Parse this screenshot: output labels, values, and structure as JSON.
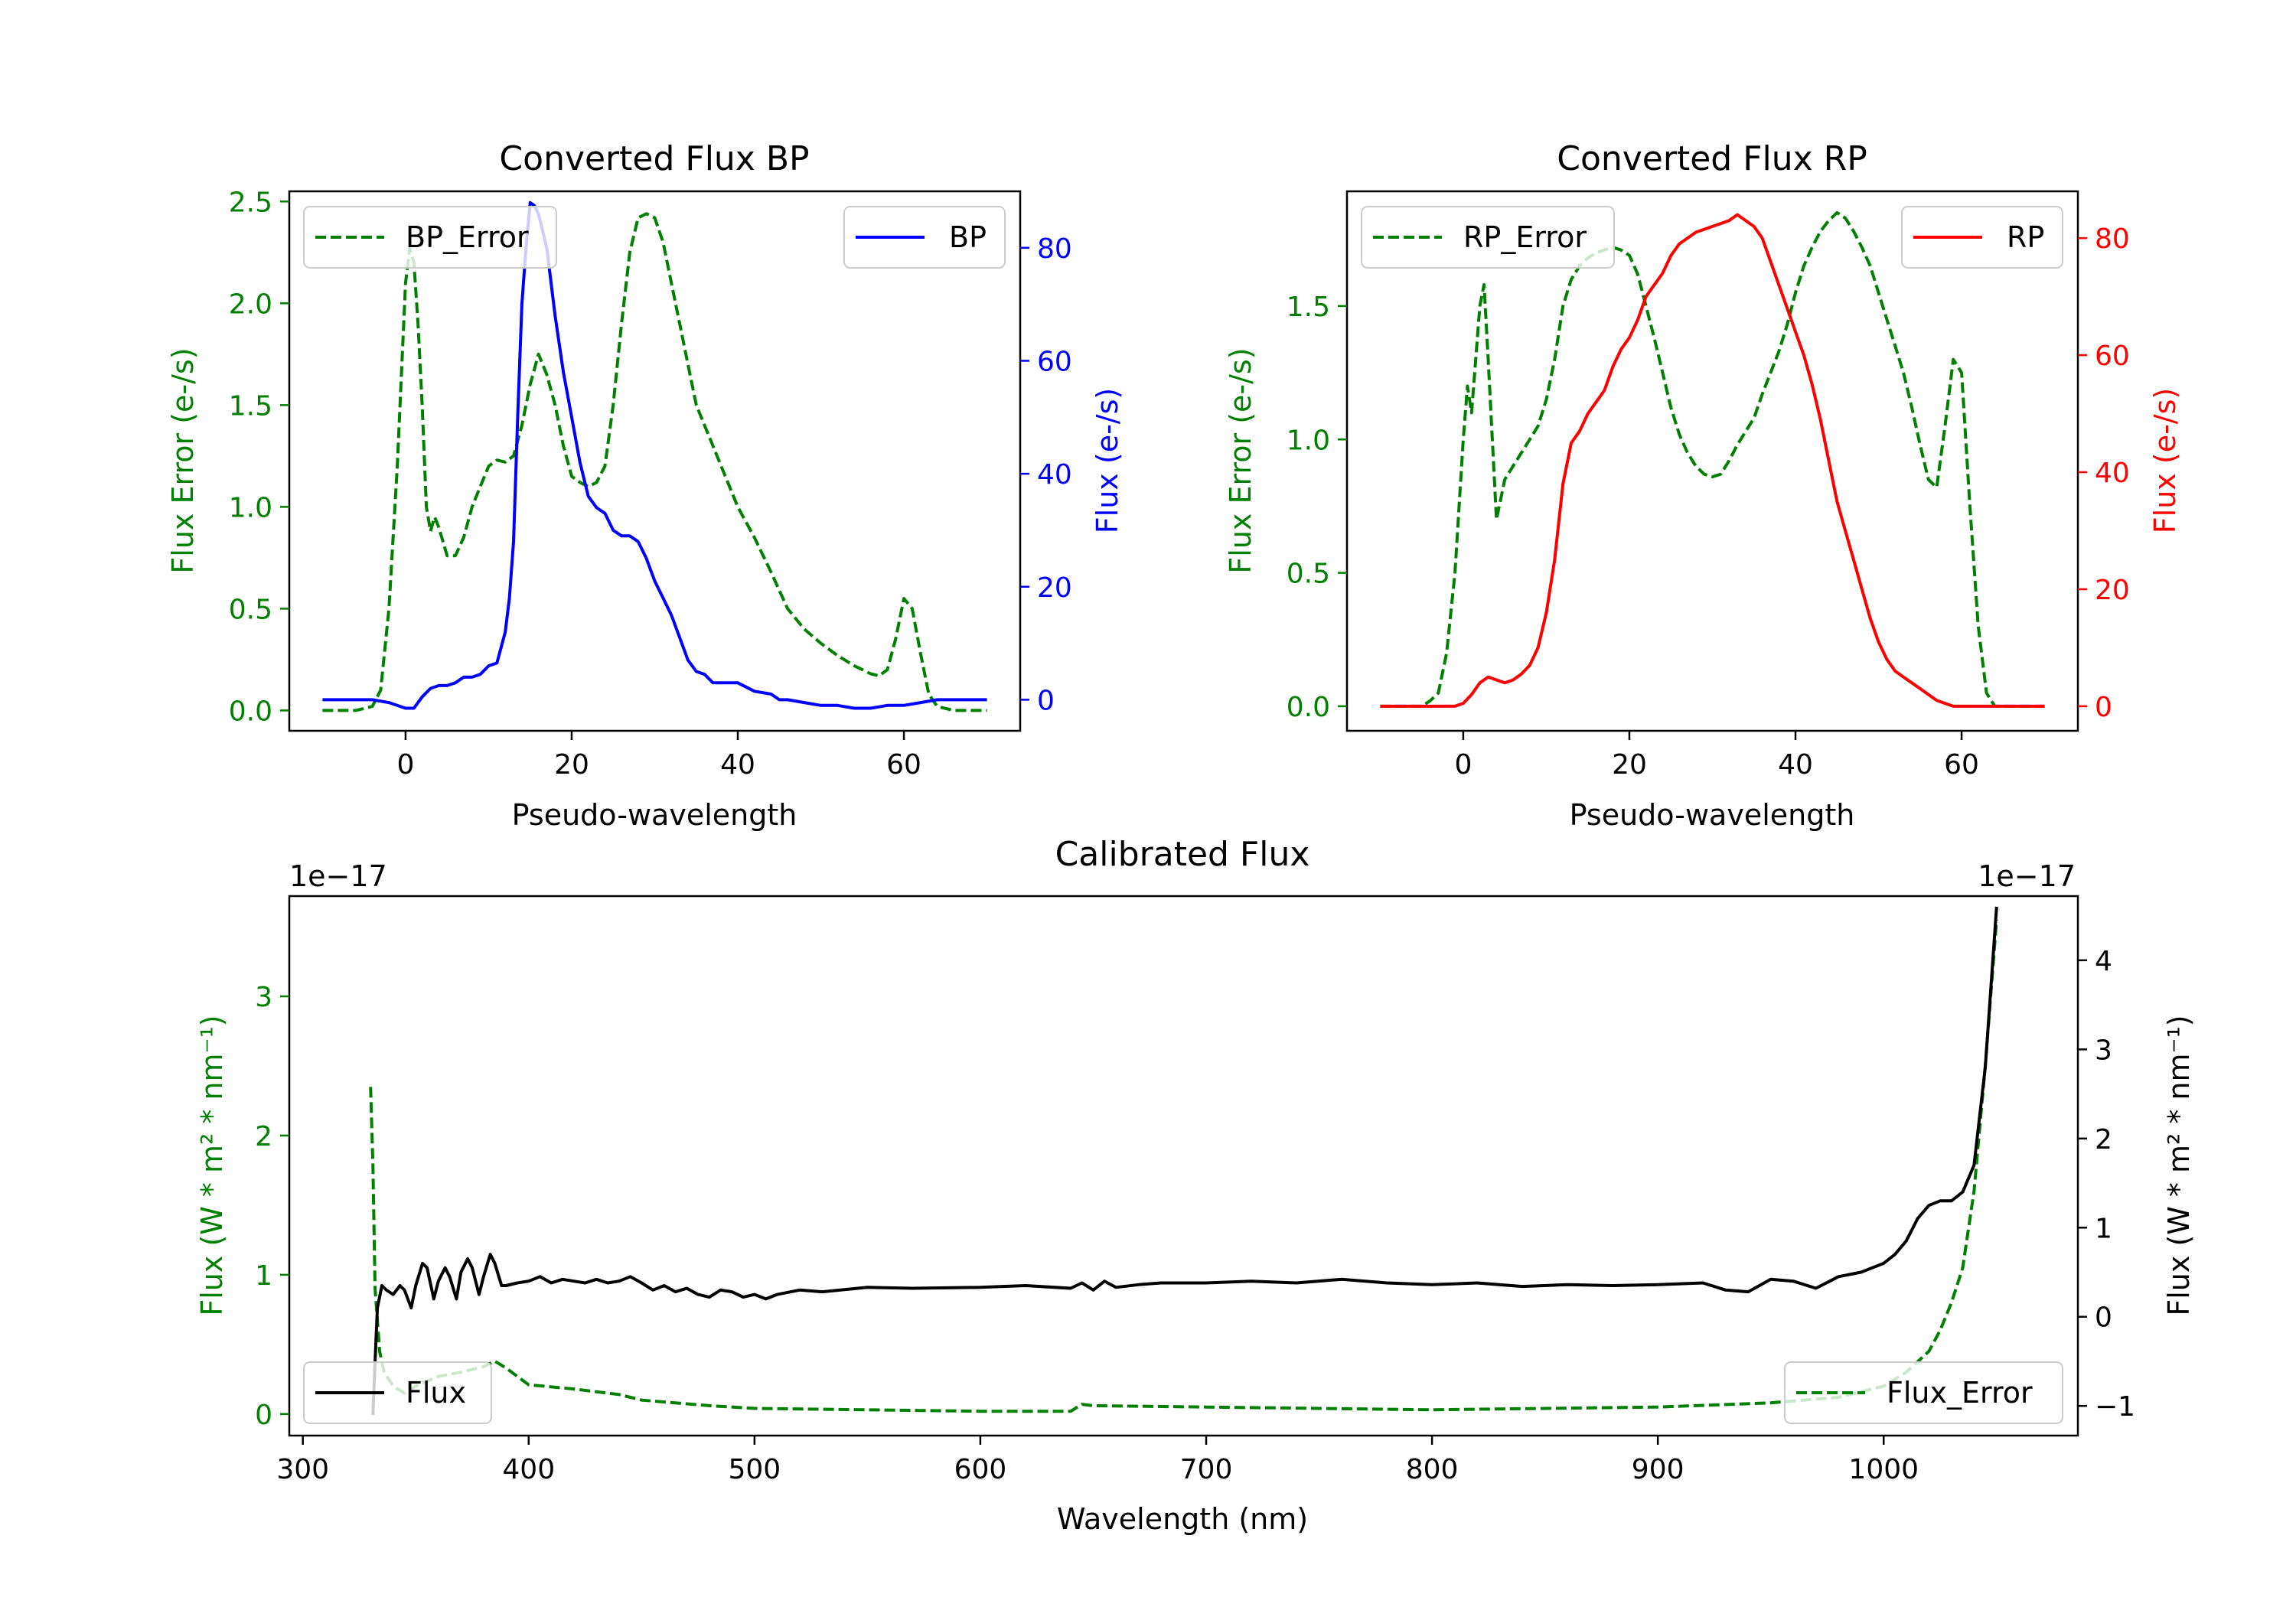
{
  "chart_data": [
    {
      "id": "bp",
      "type": "line",
      "title": "Converted Flux BP",
      "xlabel": "Pseudo-wavelength",
      "ylabel_left": "Flux Error (e-/s)",
      "ylabel_right": "Flux (e-/s)",
      "xlim": [
        -14,
        74
      ],
      "ylim_left": [
        -0.1,
        2.55
      ],
      "ylim_right": [
        -5.5,
        90
      ],
      "xticks": [
        0,
        20,
        40,
        60
      ],
      "yticks_left": [
        0.0,
        0.5,
        1.0,
        1.5,
        2.0,
        2.5
      ],
      "yticks_right": [
        0,
        20,
        40,
        60,
        80
      ],
      "legend_left": "BP_Error",
      "legend_right": "BP",
      "colors": {
        "error": "#008000",
        "flux": "#0000ff",
        "left_axis": "#008000",
        "right_axis": "#0000ff"
      },
      "series": [
        {
          "name": "BP_Error",
          "axis": "left",
          "style": "dashed",
          "x": [
            -10,
            -6,
            -4,
            -3,
            -2,
            -1,
            0,
            0.5,
            1,
            1.5,
            2,
            2.5,
            3,
            3.5,
            4,
            5,
            6,
            7,
            8,
            9,
            10,
            11,
            12,
            13,
            14,
            15,
            16,
            17,
            18,
            19,
            20,
            21,
            22,
            23,
            24,
            25,
            26,
            27,
            28,
            29,
            30,
            31,
            32,
            33,
            34,
            35,
            36,
            37,
            38,
            39,
            40,
            42,
            44,
            46,
            48,
            50,
            52,
            54,
            56,
            57,
            58,
            59,
            60,
            61,
            62,
            63,
            64,
            66,
            70
          ],
          "y": [
            0.0,
            0.0,
            0.02,
            0.1,
            0.5,
            1.2,
            2.1,
            2.27,
            2.2,
            1.9,
            1.5,
            1.0,
            0.88,
            0.95,
            0.9,
            0.76,
            0.76,
            0.85,
            1.0,
            1.1,
            1.2,
            1.23,
            1.22,
            1.25,
            1.4,
            1.6,
            1.75,
            1.65,
            1.5,
            1.3,
            1.15,
            1.12,
            1.1,
            1.12,
            1.2,
            1.5,
            1.9,
            2.25,
            2.42,
            2.44,
            2.42,
            2.3,
            2.1,
            1.9,
            1.7,
            1.5,
            1.4,
            1.3,
            1.2,
            1.1,
            1.0,
            0.85,
            0.68,
            0.5,
            0.4,
            0.33,
            0.27,
            0.22,
            0.18,
            0.17,
            0.2,
            0.35,
            0.55,
            0.5,
            0.28,
            0.08,
            0.02,
            0.0,
            0.0
          ]
        },
        {
          "name": "BP",
          "axis": "right",
          "style": "solid",
          "x": [
            -10,
            -4,
            -2,
            0,
            1,
            2,
            3,
            4,
            5,
            6,
            7,
            8,
            9,
            10,
            11,
            12,
            12.5,
            13,
            13.5,
            14,
            14.5,
            15,
            15.5,
            16,
            17,
            18,
            19,
            20,
            21,
            22,
            23,
            24,
            25,
            26,
            27,
            28,
            29,
            30,
            31,
            32,
            33,
            34,
            35,
            36,
            37,
            38,
            40,
            42,
            44,
            45,
            46,
            48,
            50,
            52,
            54,
            56,
            58,
            60,
            62,
            64,
            66,
            70
          ],
          "y": [
            0,
            0,
            -0.5,
            -1.5,
            -1.5,
            0.5,
            2,
            2.5,
            2.5,
            3,
            4,
            4,
            4.5,
            6,
            6.5,
            12,
            18,
            28,
            50,
            70,
            80,
            88,
            87.5,
            86,
            80,
            68,
            58,
            50,
            42,
            36,
            34,
            33,
            30,
            29,
            29,
            28,
            25,
            21,
            18,
            15,
            11,
            7,
            5,
            4.5,
            3,
            3,
            3,
            1.5,
            1,
            0,
            0,
            -0.5,
            -1,
            -1,
            -1.5,
            -1.5,
            -1,
            -1,
            -0.5,
            0,
            0,
            0
          ]
        }
      ]
    },
    {
      "id": "rp",
      "type": "line",
      "title": "Converted Flux RP",
      "xlabel": "Pseudo-wavelength",
      "ylabel_left": "Flux Error (e-/s)",
      "ylabel_right": "Flux (e-/s)",
      "xlim": [
        -14,
        74
      ],
      "ylim_left": [
        -0.092,
        1.93
      ],
      "ylim_right": [
        -4.2,
        88
      ],
      "xticks": [
        0,
        20,
        40,
        60
      ],
      "yticks_left": [
        0.0,
        0.5,
        1.0,
        1.5
      ],
      "yticks_right": [
        0,
        20,
        40,
        60,
        80
      ],
      "legend_left": "RP_Error",
      "legend_right": "RP",
      "colors": {
        "error": "#008000",
        "flux": "#ff0000",
        "left_axis": "#008000",
        "right_axis": "#ff0000"
      },
      "series": [
        {
          "name": "RP_Error",
          "axis": "left",
          "style": "dashed",
          "x": [
            -10,
            -5,
            -4,
            -3,
            -2,
            -1,
            0,
            0.5,
            1,
            1.5,
            2,
            2.5,
            3,
            3.5,
            4,
            5,
            6,
            7,
            8,
            9,
            10,
            11,
            12,
            13,
            14,
            15,
            16,
            17,
            18,
            19,
            20,
            21,
            22,
            23,
            24,
            25,
            26,
            27,
            28,
            29,
            30,
            31,
            32,
            33,
            34,
            35,
            36,
            37,
            38,
            39,
            40,
            41,
            42,
            43,
            44,
            45,
            46,
            47,
            48,
            49,
            50,
            51,
            52,
            53,
            54,
            55,
            56,
            57,
            58,
            59,
            60,
            61,
            62,
            63,
            64,
            65,
            70
          ],
          "y": [
            0.0,
            0.0,
            0.02,
            0.05,
            0.2,
            0.5,
            1.0,
            1.2,
            1.1,
            1.3,
            1.5,
            1.58,
            1.3,
            1.0,
            0.7,
            0.85,
            0.9,
            0.95,
            1.0,
            1.05,
            1.15,
            1.3,
            1.5,
            1.6,
            1.65,
            1.68,
            1.7,
            1.71,
            1.72,
            1.71,
            1.69,
            1.62,
            1.5,
            1.38,
            1.25,
            1.12,
            1.02,
            0.95,
            0.9,
            0.87,
            0.86,
            0.87,
            0.92,
            0.98,
            1.03,
            1.08,
            1.17,
            1.25,
            1.33,
            1.43,
            1.55,
            1.65,
            1.72,
            1.78,
            1.82,
            1.85,
            1.83,
            1.78,
            1.72,
            1.65,
            1.55,
            1.45,
            1.35,
            1.25,
            1.12,
            0.98,
            0.85,
            0.82,
            1.05,
            1.3,
            1.25,
            0.75,
            0.3,
            0.05,
            0.0,
            0.0,
            0.0
          ]
        },
        {
          "name": "RP",
          "axis": "right",
          "style": "solid",
          "x": [
            -10,
            -3,
            -1,
            0,
            1,
            2,
            3,
            4,
            5,
            6,
            7,
            8,
            9,
            10,
            11,
            12,
            13,
            14,
            15,
            16,
            17,
            18,
            19,
            20,
            21,
            22,
            23,
            24,
            25,
            26,
            27,
            28,
            29,
            30,
            31,
            32,
            33,
            34,
            35,
            36,
            37,
            38,
            39,
            40,
            41,
            42,
            43,
            44,
            45,
            46,
            47,
            48,
            49,
            50,
            51,
            52,
            53,
            54,
            55,
            56,
            57,
            58,
            59,
            60,
            62,
            70
          ],
          "y": [
            0,
            0,
            0,
            0.5,
            2,
            4,
            5,
            4.5,
            4,
            4.5,
            5.5,
            7,
            10,
            16,
            25,
            38,
            45,
            47,
            50,
            52,
            54,
            58,
            61,
            63,
            66,
            70,
            72,
            74,
            77,
            79,
            80,
            81,
            81.5,
            82,
            82.5,
            83,
            84,
            83,
            82,
            80,
            76,
            72,
            68,
            64,
            60,
            55,
            49,
            42,
            35,
            30,
            25,
            20,
            15,
            11,
            8,
            6,
            5,
            4,
            3,
            2,
            1,
            0.5,
            0,
            0,
            0,
            0
          ]
        }
      ]
    },
    {
      "id": "calibrated",
      "type": "line",
      "title": "Calibrated Flux",
      "xlabel": "Wavelength (nm)",
      "ylabel_left": "Flux (W * m² * nm⁻¹)",
      "ylabel_right": "Flux (W * m² * nm⁻¹)",
      "offset_left": "1e−17",
      "offset_right": "1e−17",
      "xlim": [
        294,
        1086
      ],
      "ylim_left": [
        -0.155,
        3.72
      ],
      "ylim_right": [
        -1.333,
        4.72
      ],
      "xticks": [
        300,
        400,
        500,
        600,
        700,
        800,
        900,
        1000
      ],
      "yticks_left": [
        0,
        1,
        2,
        3
      ],
      "yticks_right": [
        -1,
        0,
        1,
        2,
        3,
        4
      ],
      "legend_left": "Flux",
      "legend_right": "Flux_Error",
      "colors": {
        "error": "#008000",
        "flux": "#000000",
        "left_axis": "#008000",
        "right_axis": "#000000"
      },
      "series": [
        {
          "name": "Flux_Error",
          "axis": "left",
          "style": "dashed",
          "x": [
            330,
            331,
            332,
            334,
            336,
            340,
            345,
            350,
            360,
            370,
            380,
            385,
            390,
            400,
            420,
            440,
            450,
            480,
            500,
            550,
            600,
            640,
            645,
            650,
            700,
            750,
            800,
            850,
            900,
            950,
            980,
            1000,
            1010,
            1020,
            1025,
            1030,
            1035,
            1040,
            1045,
            1050
          ],
          "y": [
            2.35,
            1.8,
            0.9,
            0.45,
            0.3,
            0.2,
            0.15,
            0.2,
            0.27,
            0.3,
            0.34,
            0.38,
            0.33,
            0.21,
            0.18,
            0.14,
            0.1,
            0.06,
            0.04,
            0.03,
            0.02,
            0.02,
            0.07,
            0.06,
            0.05,
            0.04,
            0.03,
            0.04,
            0.05,
            0.08,
            0.12,
            0.2,
            0.3,
            0.45,
            0.6,
            0.8,
            1.05,
            1.6,
            2.5,
            3.55
          ]
        },
        {
          "name": "Flux",
          "axis": "right",
          "style": "solid",
          "x": [
            331,
            332,
            333,
            335,
            337,
            340,
            343,
            345,
            348,
            350,
            353,
            355,
            358,
            360,
            363,
            365,
            368,
            370,
            373,
            375,
            378,
            380,
            383,
            385,
            388,
            390,
            395,
            400,
            405,
            410,
            415,
            420,
            425,
            430,
            435,
            440,
            445,
            450,
            455,
            460,
            465,
            470,
            475,
            480,
            485,
            490,
            495,
            500,
            505,
            510,
            520,
            530,
            550,
            570,
            600,
            620,
            640,
            645,
            650,
            655,
            660,
            670,
            680,
            700,
            720,
            740,
            760,
            780,
            800,
            820,
            840,
            860,
            880,
            900,
            920,
            930,
            940,
            950,
            960,
            970,
            980,
            990,
            1000,
            1005,
            1010,
            1015,
            1020,
            1025,
            1030,
            1035,
            1040,
            1045,
            1050
          ],
          "y": [
            -1.1,
            -0.5,
            0.1,
            0.35,
            0.3,
            0.25,
            0.35,
            0.3,
            0.1,
            0.35,
            0.6,
            0.55,
            0.2,
            0.4,
            0.55,
            0.45,
            0.2,
            0.5,
            0.65,
            0.55,
            0.25,
            0.45,
            0.7,
            0.6,
            0.35,
            0.35,
            0.38,
            0.4,
            0.45,
            0.38,
            0.42,
            0.4,
            0.38,
            0.42,
            0.38,
            0.4,
            0.45,
            0.38,
            0.3,
            0.35,
            0.28,
            0.32,
            0.25,
            0.22,
            0.3,
            0.28,
            0.22,
            0.25,
            0.2,
            0.25,
            0.3,
            0.28,
            0.33,
            0.32,
            0.33,
            0.35,
            0.32,
            0.38,
            0.3,
            0.4,
            0.33,
            0.36,
            0.38,
            0.38,
            0.4,
            0.38,
            0.42,
            0.38,
            0.36,
            0.38,
            0.34,
            0.36,
            0.35,
            0.36,
            0.38,
            0.3,
            0.28,
            0.42,
            0.4,
            0.32,
            0.45,
            0.5,
            0.6,
            0.7,
            0.85,
            1.1,
            1.25,
            1.3,
            1.3,
            1.4,
            1.7,
            2.8,
            4.6
          ]
        }
      ]
    }
  ]
}
